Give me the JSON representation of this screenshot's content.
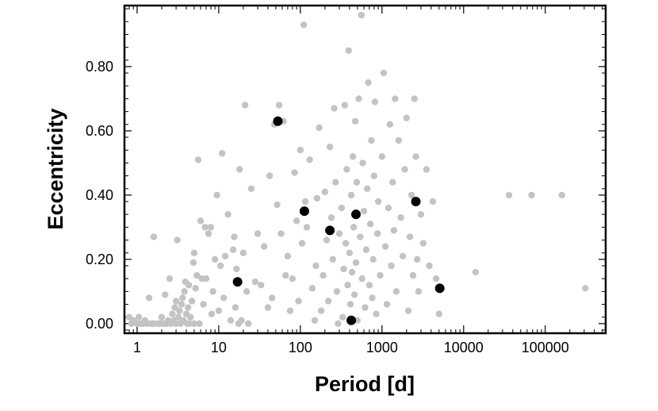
{
  "chart_data": {
    "type": "scatter",
    "xlabel": "Period [d]",
    "ylabel": "Eccentricity",
    "x_scale": "log",
    "xlim": [
      0.7,
      550000
    ],
    "ylim": [
      -0.03,
      0.99
    ],
    "x_ticks": [
      1,
      10,
      100,
      1000,
      10000,
      100000
    ],
    "x_tick_labels": [
      "1",
      "10",
      "100",
      "1000",
      "10000",
      "100000"
    ],
    "y_ticks": [
      0.0,
      0.2,
      0.4,
      0.6,
      0.8
    ],
    "y_tick_labels": [
      "0.00",
      "0.20",
      "0.40",
      "0.60",
      "0.80"
    ],
    "grid": false,
    "series": [
      {
        "color": "#c3c3c3",
        "marker": "circle",
        "points": [
          [
            0.8,
            0.02
          ],
          [
            0.85,
            0.0
          ],
          [
            0.9,
            0.01
          ],
          [
            1.0,
            0.0
          ],
          [
            1.05,
            0.02
          ],
          [
            1.1,
            0.0
          ],
          [
            1.2,
            0.0
          ],
          [
            1.25,
            0.01
          ],
          [
            1.35,
            0.0
          ],
          [
            1.4,
            0.08
          ],
          [
            1.5,
            0.0
          ],
          [
            1.6,
            0.27
          ],
          [
            1.6,
            0.0
          ],
          [
            1.8,
            0.0
          ],
          [
            1.9,
            0.0
          ],
          [
            2.0,
            0.02
          ],
          [
            2.1,
            0.0
          ],
          [
            2.2,
            0.09
          ],
          [
            2.3,
            0.0
          ],
          [
            2.4,
            0.01
          ],
          [
            2.5,
            0.14
          ],
          [
            2.6,
            0.0
          ],
          [
            2.7,
            0.03
          ],
          [
            2.8,
            0.01
          ],
          [
            2.9,
            0.05
          ],
          [
            3.0,
            0.0
          ],
          [
            3.0,
            0.07
          ],
          [
            3.1,
            0.26
          ],
          [
            3.2,
            0.02
          ],
          [
            3.3,
            0.04
          ],
          [
            3.4,
            0.0
          ],
          [
            3.5,
            0.06
          ],
          [
            3.6,
            0.08
          ],
          [
            3.7,
            0.01
          ],
          [
            3.8,
            0.1
          ],
          [
            3.9,
            0.13
          ],
          [
            4.0,
            0.03
          ],
          [
            4.1,
            0.0
          ],
          [
            4.2,
            0.05
          ],
          [
            4.3,
            0.12
          ],
          [
            4.4,
            0.0
          ],
          [
            4.5,
            0.02
          ],
          [
            4.7,
            0.07
          ],
          [
            4.9,
            0.19
          ],
          [
            5.0,
            0.22
          ],
          [
            5.0,
            0.0
          ],
          [
            5.2,
            0.11
          ],
          [
            5.4,
            0.15
          ],
          [
            5.6,
            0.51
          ],
          [
            5.8,
            0.0
          ],
          [
            6.0,
            0.32
          ],
          [
            6.2,
            0.14
          ],
          [
            6.5,
            0.06
          ],
          [
            6.8,
            0.3
          ],
          [
            7.0,
            0.14
          ],
          [
            7.5,
            0.28
          ],
          [
            8.0,
            0.3
          ],
          [
            8.2,
            0.03
          ],
          [
            8.5,
            0.1
          ],
          [
            9.0,
            0.2
          ],
          [
            9.5,
            0.4
          ],
          [
            10.0,
            0.04
          ],
          [
            10.5,
            0.18
          ],
          [
            11.0,
            0.53
          ],
          [
            11.5,
            0.08
          ],
          [
            12.0,
            0.21
          ],
          [
            13.0,
            0.34
          ],
          [
            14.0,
            0.01
          ],
          [
            15.0,
            0.23
          ],
          [
            15.5,
            0.27
          ],
          [
            16.0,
            0.05
          ],
          [
            16.5,
            0.17
          ],
          [
            17.5,
            0.0
          ],
          [
            18.0,
            0.48
          ],
          [
            19.0,
            0.01
          ],
          [
            20.0,
            0.22
          ],
          [
            21.0,
            0.68
          ],
          [
            22.0,
            0.1
          ],
          [
            23.0,
            0.0
          ],
          [
            25.0,
            0.42
          ],
          [
            28.0,
            0.13
          ],
          [
            30.0,
            0.28
          ],
          [
            33.0,
            0.12
          ],
          [
            36.0,
            0.24
          ],
          [
            40.0,
            0.05
          ],
          [
            42.0,
            0.46
          ],
          [
            45.0,
            0.08
          ],
          [
            48.0,
            0.62
          ],
          [
            52.0,
            0.37
          ],
          [
            55.0,
            0.68
          ],
          [
            58.0,
            0.28
          ],
          [
            62.0,
            0.63
          ],
          [
            66.0,
            0.15
          ],
          [
            70.0,
            0.21
          ],
          [
            75.0,
            0.04
          ],
          [
            80.0,
            0.14
          ],
          [
            85.0,
            0.47
          ],
          [
            90.0,
            0.32
          ],
          [
            95.0,
            0.07
          ],
          [
            100.0,
            0.54
          ],
          [
            105.0,
            0.25
          ],
          [
            110.0,
            0.93
          ],
          [
            115.0,
            0.38
          ],
          [
            120.0,
            0.3
          ],
          [
            130.0,
            0.51
          ],
          [
            140.0,
            0.11
          ],
          [
            150.0,
            0.01
          ],
          [
            155.0,
            0.18
          ],
          [
            160.0,
            0.39
          ],
          [
            170.0,
            0.61
          ],
          [
            180.0,
            0.04
          ],
          [
            190.0,
            0.15
          ],
          [
            200.0,
            0.41
          ],
          [
            210.0,
            0.26
          ],
          [
            220.0,
            0.07
          ],
          [
            230.0,
            0.55
          ],
          [
            240.0,
            0.33
          ],
          [
            250.0,
            0.2
          ],
          [
            260.0,
            0.67
          ],
          [
            270.0,
            0.44
          ],
          [
            280.0,
            0.1
          ],
          [
            290.0,
            0.0
          ],
          [
            300.0,
            0.28
          ],
          [
            320.0,
            0.36
          ],
          [
            330.0,
            0.02
          ],
          [
            340.0,
            0.17
          ],
          [
            350.0,
            0.68
          ],
          [
            360.0,
            0.25
          ],
          [
            370.0,
            0.48
          ],
          [
            380.0,
            0.12
          ],
          [
            390.0,
            0.85
          ],
          [
            400.0,
            0.22
          ],
          [
            410.0,
            0.06
          ],
          [
            420.0,
            0.4
          ],
          [
            430.0,
            0.16
          ],
          [
            440.0,
            0.52
          ],
          [
            450.0,
            0.3
          ],
          [
            460.0,
            0.09
          ],
          [
            470.0,
            0.63
          ],
          [
            480.0,
            0.19
          ],
          [
            490.0,
            0.44
          ],
          [
            500.0,
            0.01
          ],
          [
            520.0,
            0.7
          ],
          [
            540.0,
            0.27
          ],
          [
            560.0,
            0.96
          ],
          [
            570.0,
            0.14
          ],
          [
            580.0,
            0.5
          ],
          [
            600.0,
            0.35
          ],
          [
            620.0,
            0.05
          ],
          [
            640.0,
            0.23
          ],
          [
            660.0,
            0.42
          ],
          [
            680.0,
            0.75
          ],
          [
            700.0,
            0.12
          ],
          [
            720.0,
            0.31
          ],
          [
            740.0,
            0.57
          ],
          [
            760.0,
            0.08
          ],
          [
            780.0,
            0.2
          ],
          [
            800.0,
            0.46
          ],
          [
            820.0,
            0.69
          ],
          [
            850.0,
            0.03
          ],
          [
            880.0,
            0.28
          ],
          [
            900.0,
            0.38
          ],
          [
            950.0,
            0.15
          ],
          [
            1000.0,
            0.52
          ],
          [
            1050.0,
            0.78
          ],
          [
            1100.0,
            0.24
          ],
          [
            1150.0,
            0.06
          ],
          [
            1200.0,
            0.36
          ],
          [
            1250.0,
            0.62
          ],
          [
            1300.0,
            0.18
          ],
          [
            1350.0,
            0.44
          ],
          [
            1400.0,
            0.29
          ],
          [
            1450.0,
            0.7
          ],
          [
            1500.0,
            0.1
          ],
          [
            1600.0,
            0.57
          ],
          [
            1700.0,
            0.33
          ],
          [
            1800.0,
            0.21
          ],
          [
            1900.0,
            0.48
          ],
          [
            2000.0,
            0.64
          ],
          [
            2100.0,
            0.04
          ],
          [
            2200.0,
            0.27
          ],
          [
            2300.0,
            0.4
          ],
          [
            2400.0,
            0.15
          ],
          [
            2500.0,
            0.7
          ],
          [
            2600.0,
            0.52
          ],
          [
            2700.0,
            0.2
          ],
          [
            2800.0,
            0.1
          ],
          [
            3000.0,
            0.34
          ],
          [
            3200.0,
            0.25
          ],
          [
            3500.0,
            0.48
          ],
          [
            3800.0,
            0.18
          ],
          [
            4200.0,
            0.38
          ],
          [
            4600.0,
            0.14
          ],
          [
            5000.0,
            0.03
          ],
          [
            14000.0,
            0.16
          ],
          [
            36000.0,
            0.4
          ],
          [
            68000.0,
            0.4
          ],
          [
            160000.0,
            0.4
          ],
          [
            310000.0,
            0.11
          ]
        ]
      },
      {
        "color": "#000000",
        "marker": "circle",
        "points": [
          [
            17,
            0.13
          ],
          [
            53,
            0.63
          ],
          [
            112,
            0.35
          ],
          [
            230,
            0.29
          ],
          [
            420,
            0.01
          ],
          [
            480,
            0.34
          ],
          [
            2600,
            0.38
          ],
          [
            5100,
            0.11
          ]
        ]
      }
    ]
  }
}
